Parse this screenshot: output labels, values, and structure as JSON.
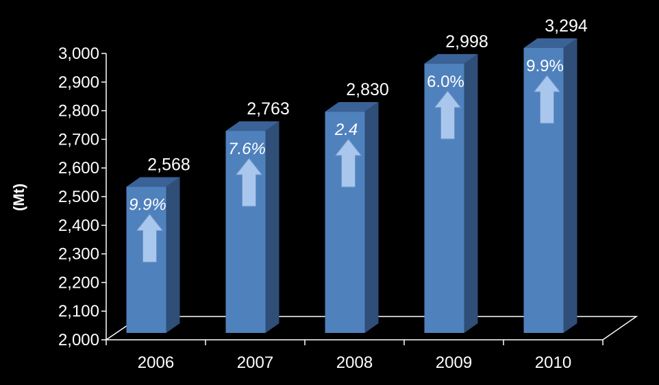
{
  "chart_data": {
    "type": "bar",
    "ylabel": "(Mt)",
    "ylim": [
      2000,
      3000
    ],
    "yticks": [
      "2,000",
      "2,100",
      "2,200",
      "2,300",
      "2,400",
      "2,500",
      "2,600",
      "2,700",
      "2,800",
      "2,900",
      "3,000"
    ],
    "categories": [
      "2006",
      "2007",
      "2008",
      "2009",
      "2010"
    ],
    "values": [
      2568,
      2763,
      2830,
      2998,
      3294
    ],
    "value_labels": [
      "2,568",
      "2,763",
      "2,830",
      "2,998",
      "3,294"
    ],
    "growth_labels": [
      "9.9%",
      "7.6%",
      "2.4",
      "6.0%",
      "9.9%"
    ],
    "growth_italic": [
      true,
      true,
      true,
      false,
      false
    ],
    "bar_color": "#4f81bd",
    "bar_side_color": "#2f4e78",
    "bar_top_color": "#3a6296",
    "arrow_color": "#a9c6ec",
    "axis_color": "#ffffff",
    "background": "#000000",
    "grid": false,
    "legend": "none"
  }
}
